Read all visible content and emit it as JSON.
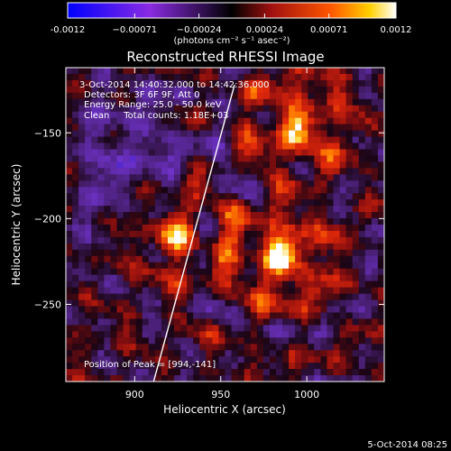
{
  "chart_data": {
    "type": "heatmap",
    "title": "Reconstructed RHESSI Image",
    "xlabel": "Heliocentric X (arcsec)",
    "ylabel": "Heliocentric Y (arcsec)",
    "xlim": [
      860,
      1045
    ],
    "ylim": [
      -295,
      -112
    ],
    "xticks": [
      900,
      950,
      1000
    ],
    "yticks": [
      -250,
      -200,
      -150
    ],
    "colorbar": {
      "range": [
        -0.0012,
        0.0012
      ],
      "tick_values": [
        -0.0012,
        -0.00071,
        -0.00024,
        0.00024,
        0.00071,
        0.0012
      ],
      "tick_labels": [
        "-0.0012",
        "−0.00071",
        "−0.00024",
        "0.00024",
        "0.00071",
        "0.0012"
      ],
      "unit_label": "(photons cm⁻² s⁻¹ asec⁻²)"
    },
    "annotations": [
      "3-Oct-2014 14:40:32.000 to 14:42:36.000",
      "Detectors: 3F 6F 9F, Att 0",
      "Energy Range: 25.0 - 50.0 keV",
      "Clean     Total counts: 1.18E+03"
    ],
    "peak_label": "Position of Peak = [994,-141]",
    "peak": {
      "x": 994,
      "y": -141
    },
    "sources": [
      {
        "x": 925,
        "y": -208,
        "strength": 0.75
      },
      {
        "x": 985,
        "y": -222,
        "strength": 1.0
      },
      {
        "x": 995,
        "y": -146,
        "strength": 0.85
      }
    ],
    "limb_line": {
      "x1": 911,
      "y1": -295,
      "x2": 958,
      "y2": -122
    },
    "grid": false
  },
  "footer": {
    "date": "5-Oct-2014 08:25"
  }
}
